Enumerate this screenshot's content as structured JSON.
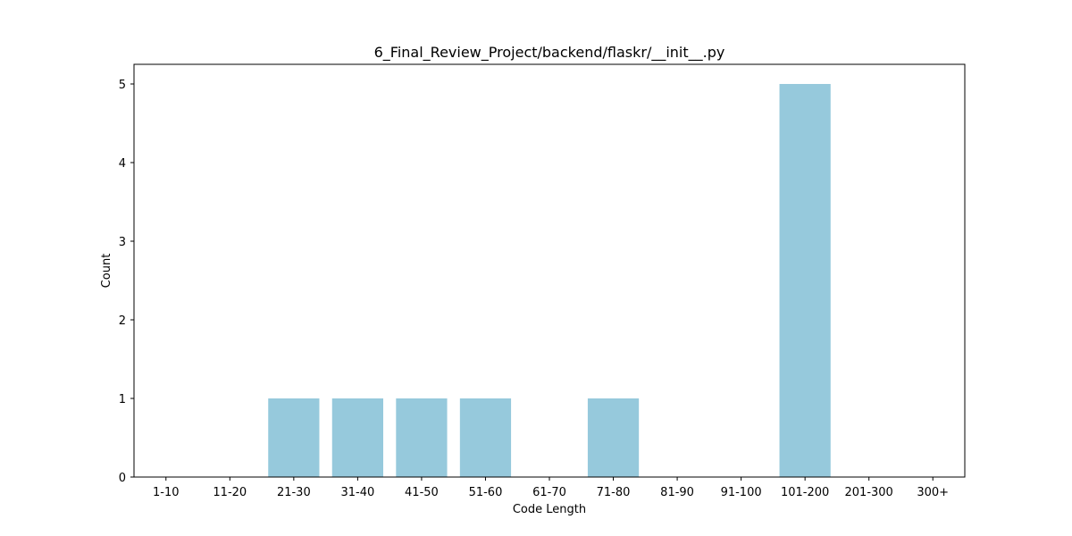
{
  "chart_data": {
    "type": "bar",
    "title": "6_Final_Review_Project/backend/flaskr/__init__.py",
    "xlabel": "Code Length",
    "ylabel": "Count",
    "categories": [
      "1-10",
      "11-20",
      "21-30",
      "31-40",
      "41-50",
      "51-60",
      "61-70",
      "71-80",
      "81-90",
      "91-100",
      "101-200",
      "201-300",
      "300+"
    ],
    "values": [
      0,
      0,
      1,
      1,
      1,
      1,
      0,
      1,
      0,
      0,
      5,
      0,
      0
    ],
    "yticks": [
      0,
      1,
      2,
      3,
      4,
      5
    ],
    "ylim": [
      0,
      5.25
    ],
    "grid": false,
    "bar_color": "#96c9dc"
  }
}
